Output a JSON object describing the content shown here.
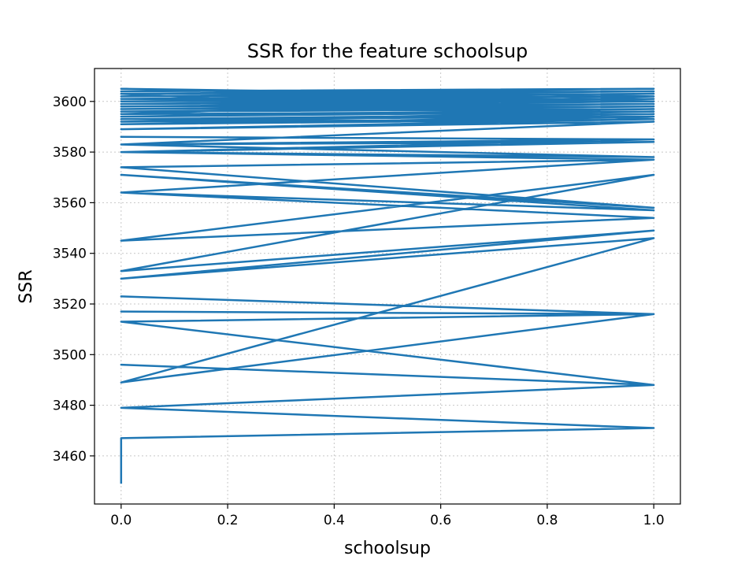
{
  "chart_data": {
    "type": "line",
    "title": "SSR for the feature schoolsup",
    "xlabel": "schoolsup",
    "ylabel": "SSR",
    "xlim": [
      -0.05,
      1.05
    ],
    "ylim": [
      3441,
      3613
    ],
    "grid": true,
    "xticks": [
      0.0,
      0.2,
      0.4,
      0.6,
      0.8,
      1.0
    ],
    "xtick_labels": [
      "0.0",
      "0.2",
      "0.4",
      "0.6",
      "0.8",
      "1.0"
    ],
    "yticks": [
      3460,
      3480,
      3500,
      3520,
      3540,
      3560,
      3580,
      3600
    ],
    "ytick_labels": [
      "3460",
      "3480",
      "3500",
      "3520",
      "3540",
      "3560",
      "3580",
      "3600"
    ],
    "color": "#1f77b4",
    "series": [
      {
        "x": [
          0,
          0,
          1,
          0,
          1,
          0,
          1,
          0,
          1,
          0,
          1,
          0,
          1,
          0,
          1,
          0,
          1,
          0,
          1,
          0,
          1,
          0,
          1,
          0,
          1,
          0,
          1,
          0,
          1,
          0,
          1,
          0,
          1,
          0,
          1,
          0,
          1,
          0,
          1,
          0,
          1,
          0,
          1,
          0,
          1,
          0,
          1,
          0,
          1,
          0,
          1,
          0,
          1,
          0,
          1,
          0,
          1,
          0,
          1,
          0,
          1,
          0,
          1,
          0,
          1,
          0,
          1,
          0,
          1,
          0,
          1,
          0,
          1,
          0,
          1,
          0,
          1,
          0,
          1,
          0,
          1
        ],
        "y": [
          3449,
          3467,
          3471,
          3479,
          3488,
          3496,
          3488,
          3513,
          3516,
          3517,
          3516,
          3523,
          3516,
          3489,
          3546,
          3530,
          3549,
          3533,
          3571,
          3545,
          3554,
          3564,
          3557,
          3571,
          3558,
          3574,
          3577,
          3564,
          3577,
          3580,
          3578,
          3583,
          3585,
          3586,
          3585,
          3580,
          3584,
          3583,
          3592,
          3589,
          3593,
          3591,
          3594,
          3593,
          3595,
          3592,
          3596,
          3594,
          3597,
          3596,
          3598,
          3597,
          3599,
          3598,
          3600,
          3599,
          3601,
          3600,
          3602,
          3601,
          3603,
          3602,
          3604,
          3603,
          3605,
          3604,
          3605,
          3603,
          3604,
          3602,
          3603,
          3601,
          3600,
          3605,
          3602,
          3595,
          3596,
          3592,
          3593,
          3603,
          3605
        ]
      }
    ]
  }
}
